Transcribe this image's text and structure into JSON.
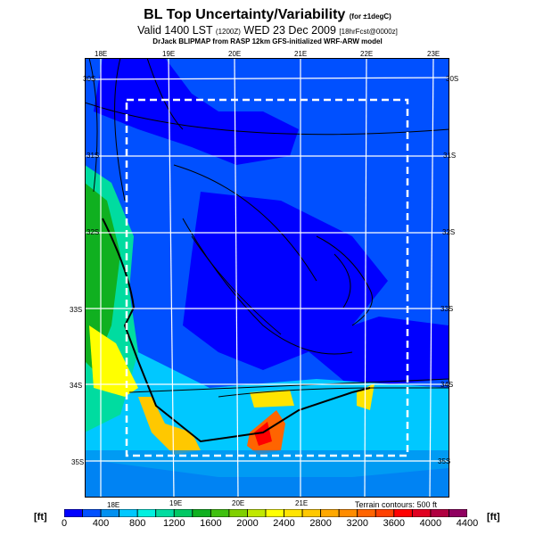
{
  "header": {
    "title": "BL Top Uncertainty/Variability",
    "title_note": "(for ±1degC)",
    "subtitle": "Valid 1400 LST",
    "subtitle_utc": "(1200Z)",
    "subtitle_date": "WED 23 Dec 2009",
    "subtitle_fcst": "[18hrFcst@0000z]",
    "source": "DrJack BLIPMAP from RASP 12km GFS-initialized WRF-ARW model"
  },
  "map": {
    "lon_labels_top": [
      "18E",
      "19E",
      "20E",
      "21E",
      "22E",
      "23E"
    ],
    "lon_labels_bottom": [
      "18E",
      "19E",
      "20E",
      "21E"
    ],
    "lat_labels_left": [
      "30S",
      "31S",
      "32S",
      "33S",
      "34S",
      "35S"
    ],
    "lat_labels_right": [
      "30S",
      "31S",
      "32S",
      "33S",
      "34S",
      "35S"
    ],
    "terrain_note": "Terrain contours: 500 ft"
  },
  "colorbar": {
    "unit_left": "[ft]",
    "unit_right": "[ft]",
    "labels": [
      "0",
      "400",
      "800",
      "1200",
      "1600",
      "2000",
      "2400",
      "2800",
      "3200",
      "3600",
      "4000",
      "4400"
    ],
    "min": 0,
    "max": 4400,
    "step": 200,
    "colors": [
      "#0000ff",
      "#0050ff",
      "#0090f0",
      "#00c8ff",
      "#00f0e0",
      "#00dca0",
      "#00c864",
      "#10b020",
      "#40c010",
      "#80d000",
      "#c0e800",
      "#ffff00",
      "#ffe400",
      "#ffc800",
      "#ffa800",
      "#ff8c00",
      "#ff6400",
      "#ff4000",
      "#ff0000",
      "#e00020",
      "#b00040",
      "#900060"
    ]
  }
}
